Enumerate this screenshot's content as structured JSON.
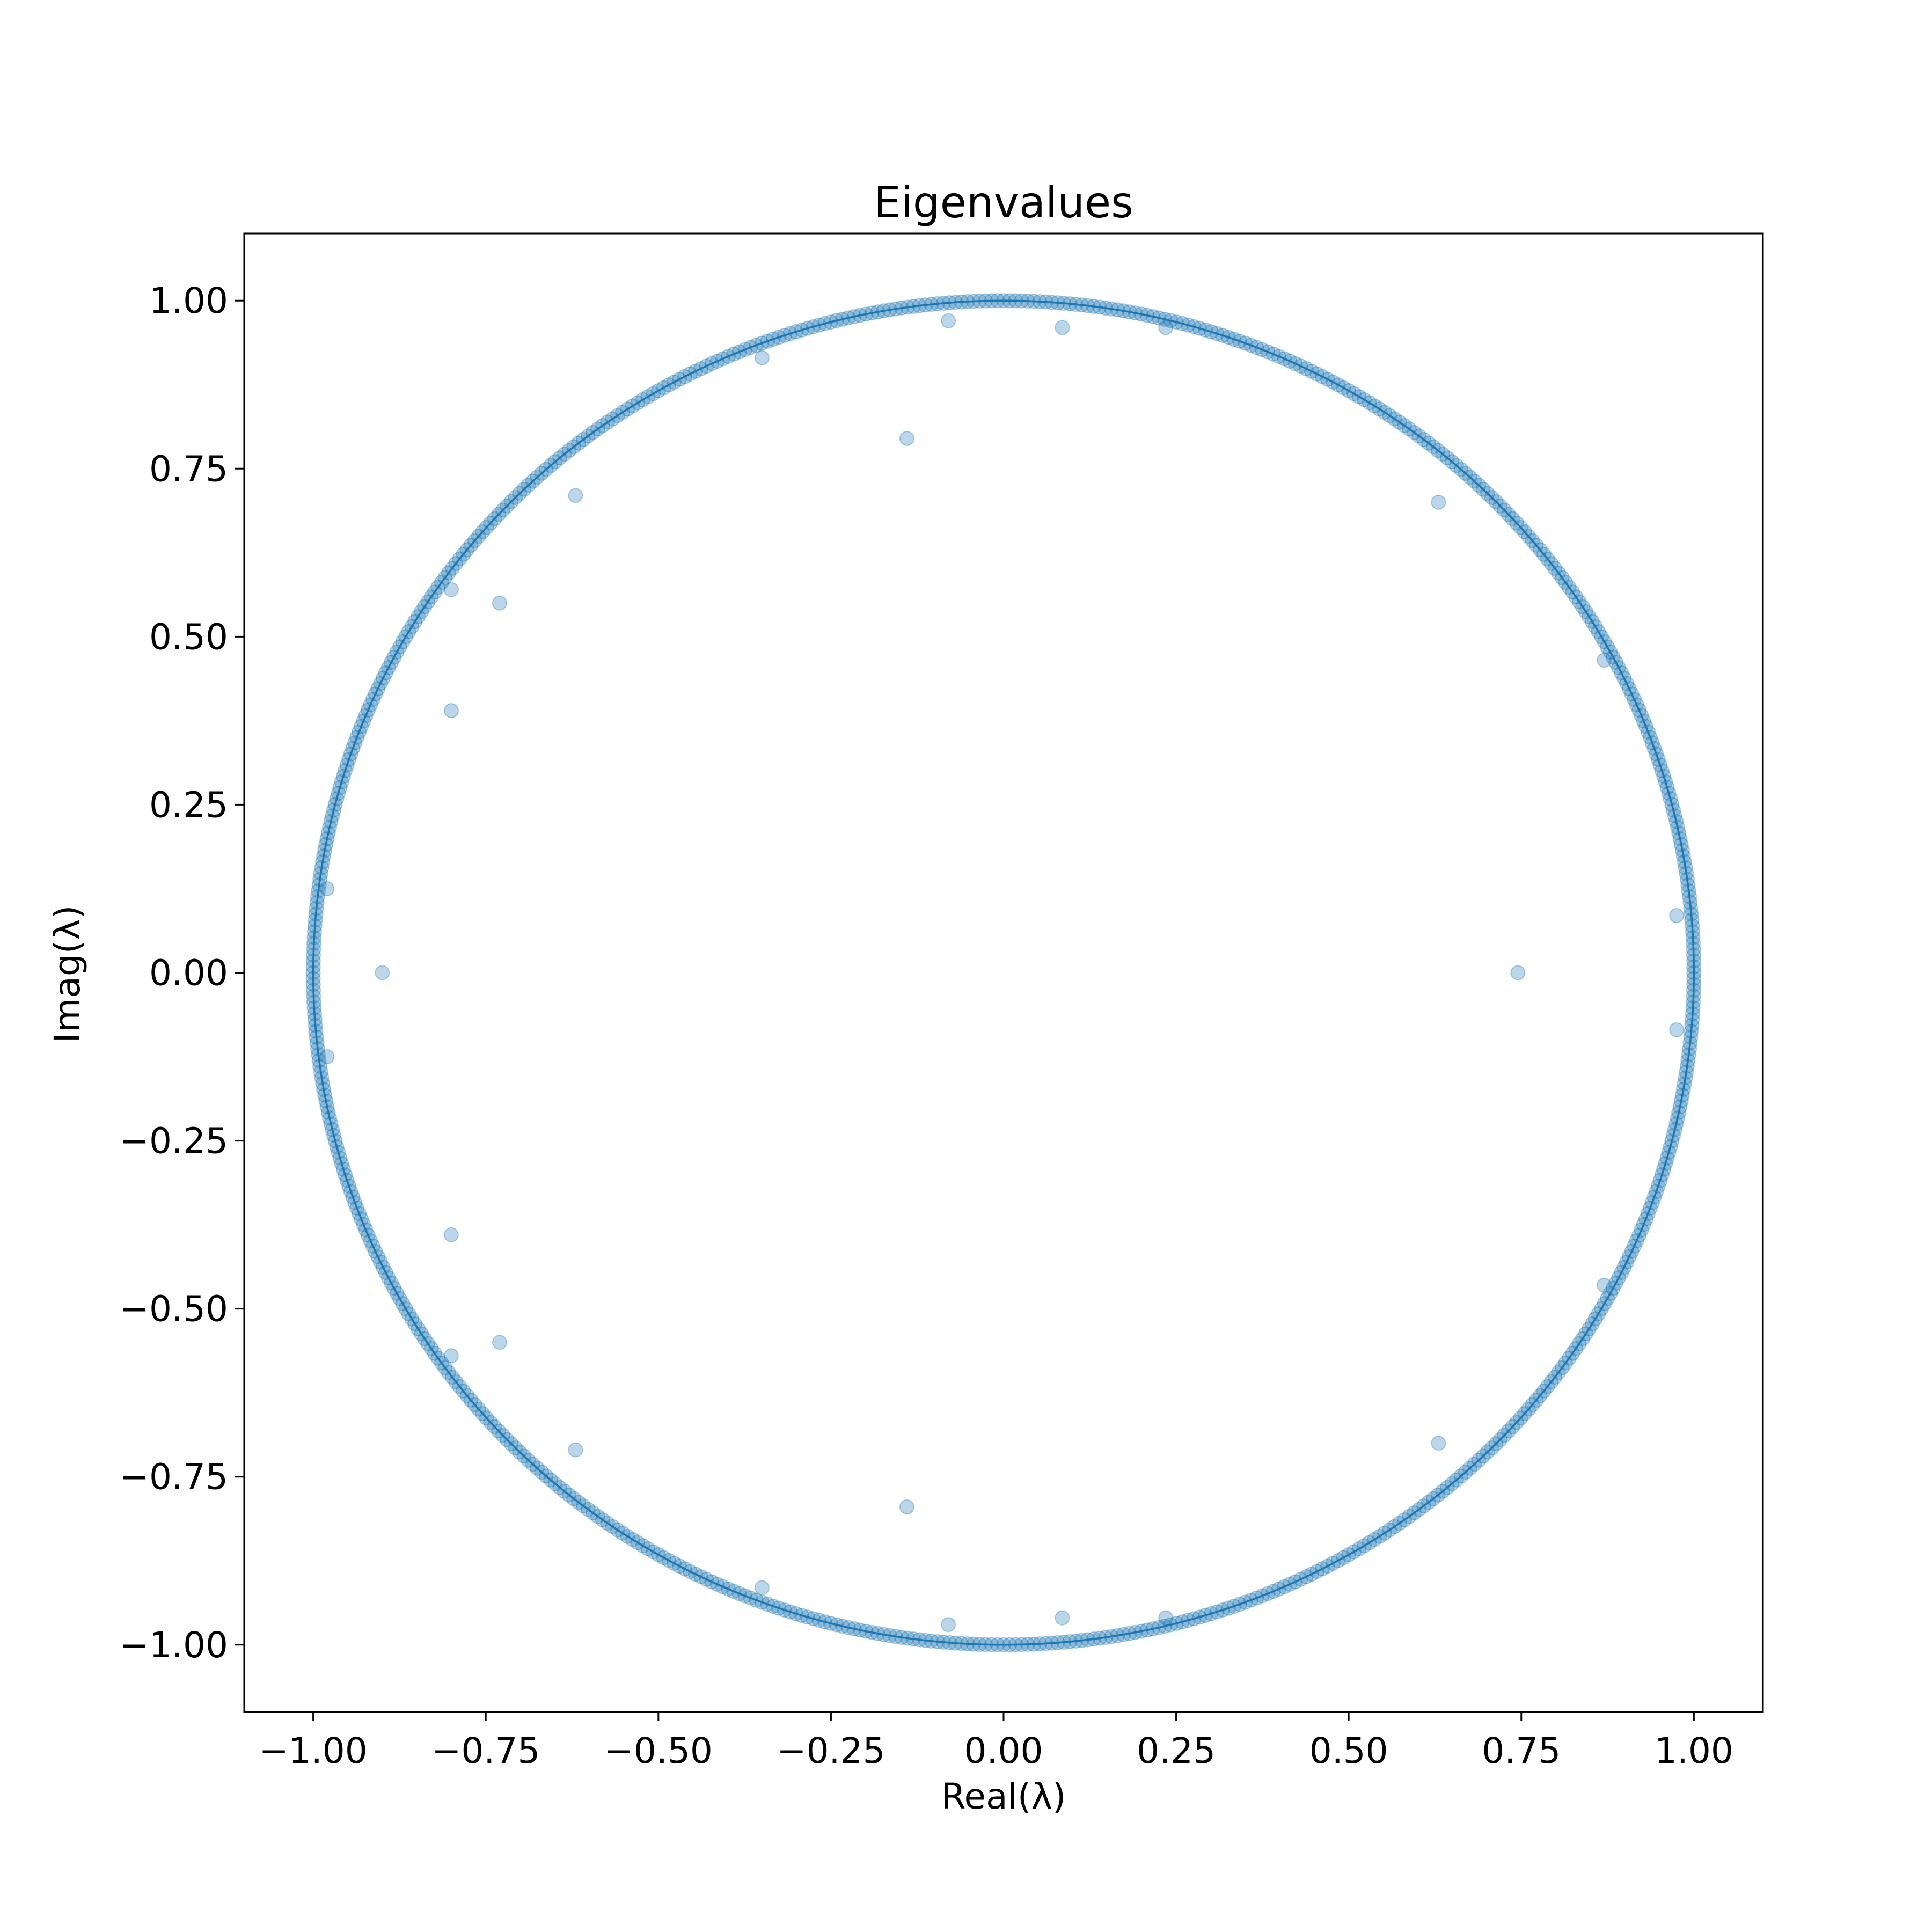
{
  "chart_data": {
    "type": "scatter",
    "title": "Eigenvalues",
    "xlabel": "Real(λ)",
    "ylabel": "Imag(λ)",
    "xlim": [
      -1.1,
      1.1
    ],
    "ylim": [
      -1.1,
      1.1
    ],
    "xticks": [
      -1.0,
      -0.75,
      -0.5,
      -0.25,
      0.0,
      0.25,
      0.5,
      0.75,
      1.0
    ],
    "xtick_labels": [
      "−1.00",
      "−0.75",
      "−0.50",
      "−0.25",
      "0.00",
      "0.25",
      "0.50",
      "0.75",
      "1.00"
    ],
    "yticks": [
      -1.0,
      -0.75,
      -0.5,
      -0.25,
      0.0,
      0.25,
      0.5,
      0.75,
      1.0
    ],
    "ytick_labels": [
      "−1.00",
      "−0.75",
      "−0.50",
      "−0.25",
      "0.00",
      "0.25",
      "0.50",
      "0.75",
      "1.00"
    ],
    "grid": false,
    "colors": {
      "points": "#1f77b4",
      "circle": "#1f77b4",
      "frame": "#000000"
    },
    "reference_curve": {
      "type": "unit-circle",
      "radius": 1.0
    },
    "ring_eigenvalues": {
      "count": 720,
      "radius": 1.0
    },
    "interior_points": [
      {
        "x": -0.9,
        "y": 0.0
      },
      {
        "x": 0.745,
        "y": 0.0
      },
      {
        "x": -0.8,
        "y": 0.39
      },
      {
        "x": -0.8,
        "y": -0.39
      },
      {
        "x": -0.73,
        "y": 0.55
      },
      {
        "x": -0.73,
        "y": -0.55
      },
      {
        "x": -0.8,
        "y": 0.57
      },
      {
        "x": -0.8,
        "y": -0.57
      },
      {
        "x": -0.62,
        "y": 0.71
      },
      {
        "x": -0.62,
        "y": -0.71
      },
      {
        "x": -0.14,
        "y": 0.795
      },
      {
        "x": -0.14,
        "y": -0.795
      },
      {
        "x": -0.35,
        "y": 0.915
      },
      {
        "x": -0.35,
        "y": -0.915
      },
      {
        "x": -0.08,
        "y": 0.97
      },
      {
        "x": -0.08,
        "y": -0.97
      },
      {
        "x": 0.085,
        "y": 0.96
      },
      {
        "x": 0.085,
        "y": -0.96
      },
      {
        "x": 0.235,
        "y": 0.96
      },
      {
        "x": 0.235,
        "y": -0.96
      },
      {
        "x": 0.63,
        "y": 0.7
      },
      {
        "x": 0.63,
        "y": -0.7
      },
      {
        "x": 0.87,
        "y": 0.465
      },
      {
        "x": 0.87,
        "y": -0.465
      },
      {
        "x": 0.975,
        "y": 0.085
      },
      {
        "x": 0.975,
        "y": -0.085
      },
      {
        "x": -0.98,
        "y": 0.125
      },
      {
        "x": -0.98,
        "y": -0.125
      }
    ]
  }
}
